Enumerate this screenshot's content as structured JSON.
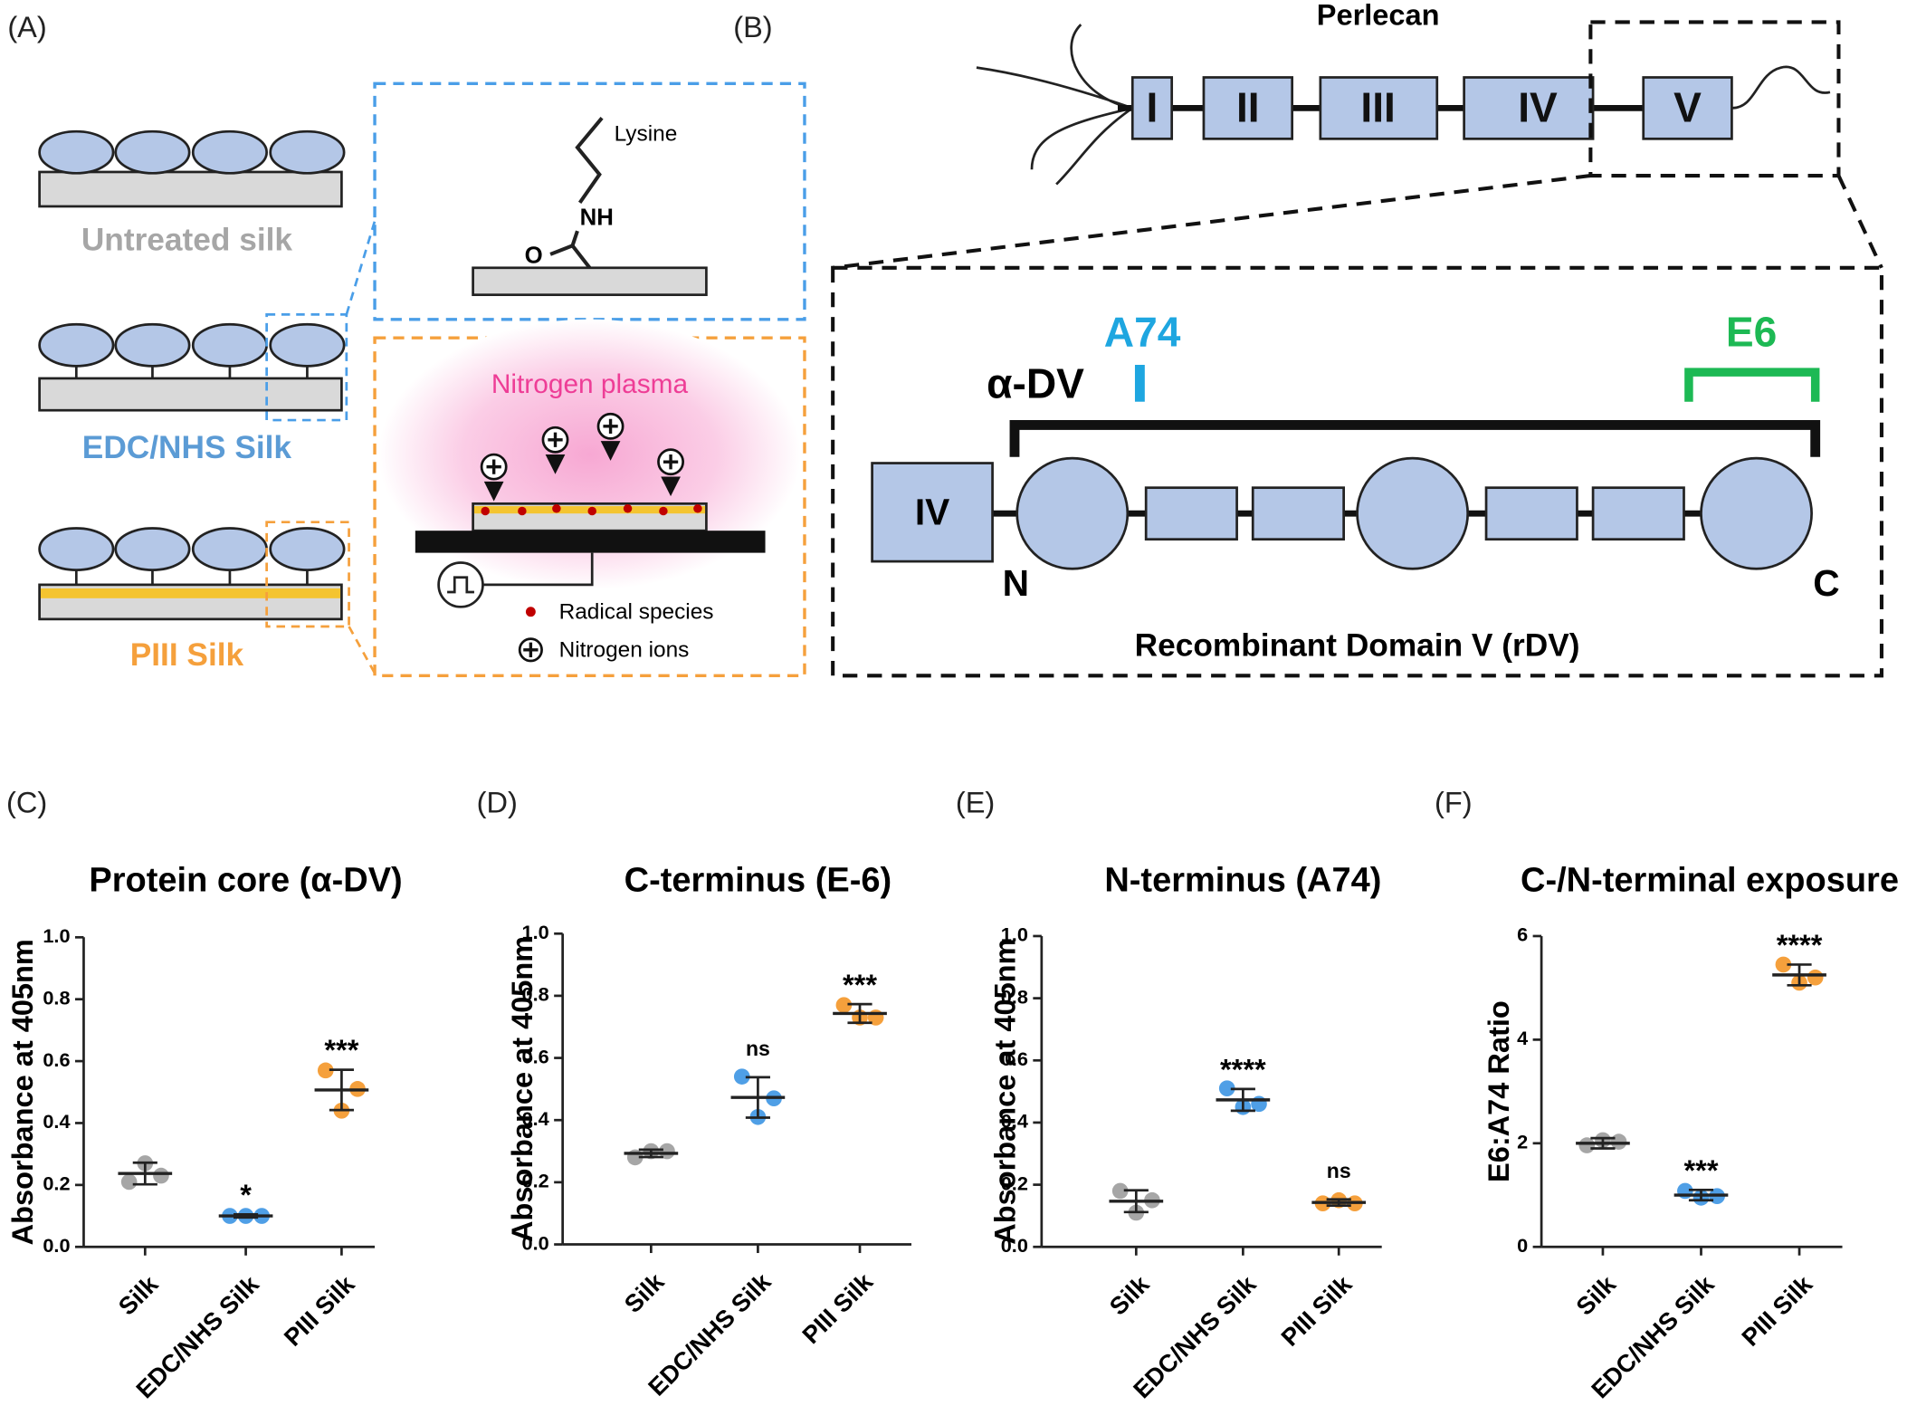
{
  "diagram": {
    "panel_a": {
      "label": "(A)",
      "surfaces": [
        "Untreated silk",
        "EDC/NHS Silk",
        "PIII Silk"
      ],
      "lysine": "Lysine",
      "nh": "NH",
      "o": "O",
      "plasma": "Nitrogen plasma",
      "legend": [
        "Radical species",
        "Nitrogen ions"
      ]
    },
    "panel_b": {
      "label": "(B)",
      "title": "Perlecan",
      "domains": [
        "I",
        "II",
        "III",
        "IV",
        "V"
      ],
      "inset_domain": "IV",
      "n_term": "N",
      "c_term": "C",
      "antibodies": [
        "α-DV",
        "A74",
        "E6"
      ],
      "caption": "Recombinant Domain V (rDV)"
    }
  },
  "chart_data": [
    {
      "type": "dotplot",
      "panel": "(C)",
      "title": "Protein core (α-DV)",
      "ylabel": "Absorbance at 405nm",
      "categories": [
        "Silk",
        "EDC/NHS Silk",
        "PIII Silk"
      ],
      "colors": [
        "#a6a6a6",
        "#4f9fe6",
        "#f5a03c"
      ],
      "points": [
        [
          0.21,
          0.27,
          0.23
        ],
        [
          0.1,
          0.1,
          0.1
        ],
        [
          0.57,
          0.44,
          0.51
        ]
      ],
      "means": [
        0.237,
        0.1,
        0.507
      ],
      "sd": [
        0.035,
        0.005,
        0.065
      ],
      "significance": [
        null,
        "*",
        "***"
      ],
      "ylim": [
        0,
        1
      ],
      "yticks": [
        {
          "value": 0,
          "label": "0.0"
        },
        {
          "value": 0.2,
          "label": "0.2"
        },
        {
          "value": 0.4,
          "label": "0.4"
        },
        {
          "value": 0.6,
          "label": "0.6"
        },
        {
          "value": 0.8,
          "label": "0.8"
        },
        {
          "value": 1,
          "label": "1.0"
        }
      ]
    },
    {
      "type": "dotplot",
      "panel": "(D)",
      "title": "C-terminus (E-6)",
      "ylabel": "Absorbance at 405nm",
      "categories": [
        "Silk",
        "EDC/NHS Silk",
        "PIII Silk"
      ],
      "colors": [
        "#a6a6a6",
        "#4f9fe6",
        "#f5a03c"
      ],
      "points": [
        [
          0.28,
          0.3,
          0.3
        ],
        [
          0.54,
          0.41,
          0.47
        ],
        [
          0.77,
          0.73,
          0.73
        ]
      ],
      "means": [
        0.293,
        0.473,
        0.743
      ],
      "sd": [
        0.012,
        0.065,
        0.03
      ],
      "significance": [
        null,
        "ns",
        "***"
      ],
      "ylim": [
        0,
        1
      ],
      "yticks": [
        {
          "value": 0,
          "label": "0.0"
        },
        {
          "value": 0.2,
          "label": "0.2"
        },
        {
          "value": 0.4,
          "label": "0.4"
        },
        {
          "value": 0.6,
          "label": "0.6"
        },
        {
          "value": 0.8,
          "label": "0.8"
        },
        {
          "value": 1,
          "label": "1.0"
        }
      ]
    },
    {
      "type": "dotplot",
      "panel": "(E)",
      "title": "N-terminus (A74)",
      "ylabel": "Absorbance at 405nm",
      "categories": [
        "Silk",
        "EDC/NHS Silk",
        "PIII Silk"
      ],
      "colors": [
        "#a6a6a6",
        "#4f9fe6",
        "#f5a03c"
      ],
      "points": [
        [
          0.18,
          0.11,
          0.15
        ],
        [
          0.51,
          0.45,
          0.46
        ],
        [
          0.14,
          0.15,
          0.14
        ]
      ],
      "means": [
        0.147,
        0.473,
        0.143
      ],
      "sd": [
        0.035,
        0.035,
        0.01
      ],
      "significance": [
        null,
        "****",
        "ns"
      ],
      "ylim": [
        0,
        1
      ],
      "yticks": [
        {
          "value": 0,
          "label": "0.0"
        },
        {
          "value": 0.2,
          "label": "0.2"
        },
        {
          "value": 0.4,
          "label": "0.4"
        },
        {
          "value": 0.6,
          "label": "0.6"
        },
        {
          "value": 0.8,
          "label": "0.8"
        },
        {
          "value": 1,
          "label": "1.0"
        }
      ]
    },
    {
      "type": "dotplot",
      "panel": "(F)",
      "title": "C-/N-terminal exposure",
      "ylabel": "E6:A74 Ratio",
      "categories": [
        "Silk",
        "EDC/NHS Silk",
        "PIII Silk"
      ],
      "colors": [
        "#a6a6a6",
        "#4f9fe6",
        "#f5a03c"
      ],
      "points": [
        [
          1.96,
          2.06,
          2.03
        ],
        [
          1.08,
          0.95,
          0.98
        ],
        [
          5.45,
          5.1,
          5.2
        ]
      ],
      "means": [
        2.0,
        1.0,
        5.25
      ],
      "sd": [
        0.1,
        0.1,
        0.2
      ],
      "significance": [
        null,
        "***",
        "****"
      ],
      "ylim": [
        0,
        6
      ],
      "yticks": [
        0,
        2,
        4,
        6
      ]
    }
  ]
}
